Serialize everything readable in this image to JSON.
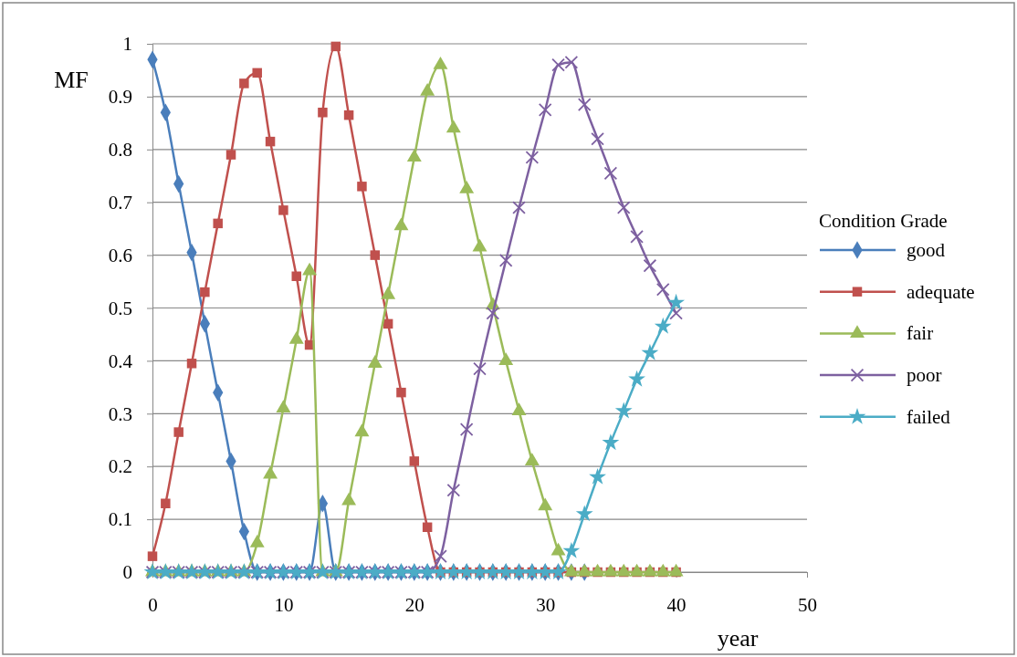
{
  "chart_data": {
    "type": "line",
    "xlabel": "year",
    "ylabel": "MF",
    "legend_title": "Condition Grade",
    "legend": "right",
    "grid": "y",
    "x": [
      0,
      1,
      2,
      3,
      4,
      5,
      6,
      7,
      8,
      9,
      10,
      11,
      12,
      13,
      14,
      15,
      16,
      17,
      18,
      19,
      20,
      21,
      22,
      23,
      24,
      25,
      26,
      27,
      28,
      29,
      30,
      31,
      32,
      33,
      34,
      35,
      36,
      37,
      38,
      39,
      40
    ],
    "xlim": [
      0,
      50
    ],
    "xticks": [
      0,
      10,
      20,
      30,
      40,
      50
    ],
    "ylim": [
      0,
      1
    ],
    "yticks": [
      0,
      0.1,
      0.2,
      0.3,
      0.4,
      0.5,
      0.6,
      0.7,
      0.8,
      0.9,
      1
    ],
    "series": [
      {
        "name": "good",
        "color": "#4a7ebb",
        "marker": "diamond",
        "values": [
          0.97,
          0.87,
          0.735,
          0.605,
          0.47,
          0.34,
          0.21,
          0.077,
          0,
          0,
          0,
          0,
          0,
          0.13,
          0,
          0,
          0,
          0,
          0,
          0,
          0,
          0,
          0,
          0,
          0,
          0,
          0,
          0,
          0,
          0,
          0,
          0,
          0,
          0,
          null,
          null,
          null,
          null,
          null,
          null,
          null
        ]
      },
      {
        "name": "adequate",
        "color": "#c0504d",
        "marker": "square",
        "values": [
          0.03,
          0.13,
          0.265,
          0.395,
          0.53,
          0.66,
          0.79,
          0.925,
          0.945,
          0.815,
          0.685,
          0.56,
          0.43,
          0.87,
          0.995,
          0.865,
          0.73,
          0.6,
          0.47,
          0.34,
          0.21,
          0.085,
          0,
          0,
          0,
          0,
          0,
          0,
          0,
          0,
          0,
          0,
          0,
          0,
          0,
          0,
          0,
          0,
          0,
          0,
          0
        ]
      },
      {
        "name": "fair",
        "color": "#9bbb59",
        "marker": "triangle",
        "values": [
          0,
          0,
          0,
          0,
          0,
          0,
          0,
          0,
          0.055,
          0.185,
          0.31,
          0.44,
          0.57,
          0,
          0,
          0.135,
          0.265,
          0.395,
          0.525,
          0.655,
          0.785,
          0.91,
          0.96,
          0.84,
          0.725,
          0.615,
          0.505,
          0.4,
          0.305,
          0.21,
          0.125,
          0.04,
          0,
          0,
          0,
          0,
          0,
          0,
          0,
          0,
          0
        ]
      },
      {
        "name": "poor",
        "color": "#7d60a0",
        "marker": "cross",
        "values": [
          0,
          0,
          0,
          0,
          0,
          0,
          0,
          0,
          0,
          0,
          0,
          0,
          0,
          0,
          0,
          0,
          0,
          0,
          0,
          0,
          0,
          0,
          0.03,
          0.155,
          0.27,
          0.385,
          0.49,
          0.59,
          0.69,
          0.785,
          0.875,
          0.96,
          0.965,
          0.885,
          0.82,
          0.755,
          0.69,
          0.635,
          0.58,
          0.535,
          0.49
        ]
      },
      {
        "name": "failed",
        "color": "#4bacc6",
        "marker": "star",
        "values": [
          0,
          0,
          0,
          0,
          0,
          0,
          0,
          0,
          0,
          0,
          0,
          0,
          0,
          0,
          0,
          0,
          0,
          0,
          0,
          0,
          0,
          0,
          0,
          0,
          0,
          0,
          0,
          0,
          0,
          0,
          0,
          0,
          0.04,
          0.11,
          0.18,
          0.245,
          0.305,
          0.365,
          0.415,
          0.465,
          0.51
        ]
      }
    ]
  }
}
